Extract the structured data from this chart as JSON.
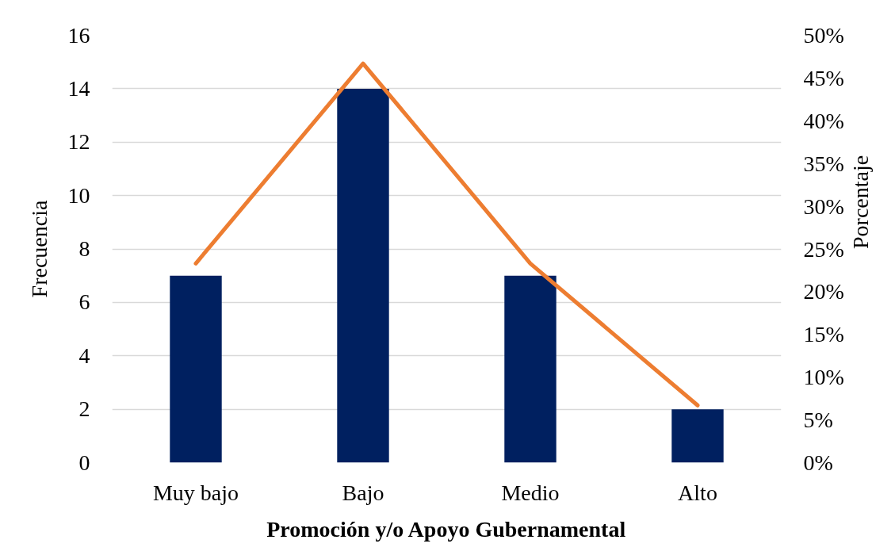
{
  "chart_data": {
    "type": "bar",
    "xlabel": "Promoción y/o Apoyo Gubernamental",
    "ylabel": "Frecuencia",
    "y2label": "Porcentaje",
    "categories": [
      "Muy bajo",
      "Bajo",
      "Medio",
      "Alto"
    ],
    "series": [
      {
        "color": "#002060",
        "values": [
          7,
          14,
          7,
          2
        ]
      },
      {
        "type": "line",
        "axis": "y2",
        "color": "#ed7d31",
        "line_style": "solid",
        "values": [
          23.3,
          46.7,
          23.3,
          6.7
        ]
      }
    ],
    "ylim": [
      0,
      16
    ],
    "yticks": [
      0,
      2,
      4,
      6,
      8,
      10,
      12,
      14,
      16
    ],
    "y2lim": [
      0,
      50
    ],
    "y2ticks": [
      {
        "value": 0,
        "label": "0%"
      },
      {
        "value": 5,
        "label": "5%"
      },
      {
        "value": 10,
        "label": "10%"
      },
      {
        "value": 15,
        "label": "15%"
      },
      {
        "value": 20,
        "label": "20%"
      },
      {
        "value": 25,
        "label": "25%"
      },
      {
        "value": 30,
        "label": "30%"
      },
      {
        "value": 35,
        "label": "35%"
      },
      {
        "value": 40,
        "label": "40%"
      },
      {
        "value": 45,
        "label": "45%"
      },
      {
        "value": 50,
        "label": "50%"
      }
    ],
    "grid": "y"
  }
}
